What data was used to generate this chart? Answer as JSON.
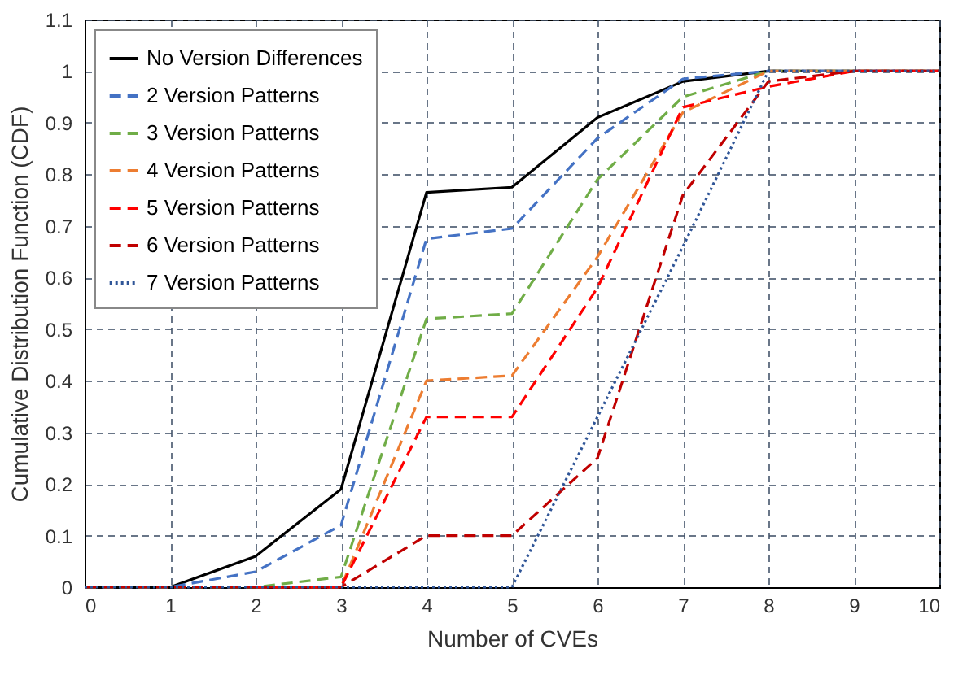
{
  "chart_data": {
    "type": "line",
    "xlabel": "Number of CVEs",
    "ylabel": "Cumulative Distribution Function (CDF)",
    "x": [
      0,
      1,
      2,
      3,
      4,
      5,
      6,
      7,
      8,
      9,
      10
    ],
    "series": [
      {
        "name": "No Version Differences",
        "color": "#000000",
        "line_style": "solid",
        "values": [
          0,
          0,
          0.06,
          0.19,
          0.765,
          0.775,
          0.91,
          0.98,
          1,
          1,
          1
        ]
      },
      {
        "name": "2 Version Patterns",
        "color": "#4472c4",
        "line_style": "dashed",
        "values": [
          0,
          0,
          0.03,
          0.12,
          0.675,
          0.695,
          0.87,
          0.985,
          1,
          1,
          1
        ]
      },
      {
        "name": "3 Version Patterns",
        "color": "#70ad47",
        "line_style": "dashed",
        "values": [
          0,
          0,
          0,
          0.02,
          0.52,
          0.53,
          0.79,
          0.95,
          1,
          1,
          1
        ]
      },
      {
        "name": "4 Version Patterns",
        "color": "#ed7d31",
        "line_style": "dashed",
        "values": [
          null,
          null,
          0,
          0,
          0.4,
          0.41,
          0.64,
          0.92,
          1,
          1,
          1
        ]
      },
      {
        "name": "5 Version Patterns",
        "color": "#ff0000",
        "line_style": "dashed",
        "values": [
          null,
          null,
          0,
          0,
          0.33,
          0.33,
          0.58,
          0.93,
          0.97,
          1,
          1
        ]
      },
      {
        "name": "6 Version Patterns",
        "color": "#c00000",
        "line_style": "dashed",
        "values": [
          0,
          0,
          0,
          0,
          0.1,
          0.1,
          0.25,
          0.76,
          0.98,
          1,
          1
        ]
      },
      {
        "name": "7 Version Patterns",
        "color": "#2f5597",
        "line_style": "dotted",
        "values": [
          0,
          0,
          0,
          0,
          0,
          0,
          0.33,
          0.66,
          1,
          1,
          1
        ]
      }
    ],
    "xlim": [
      0,
      10
    ],
    "xticks": [
      0,
      1,
      2,
      3,
      4,
      5,
      6,
      7,
      8,
      9,
      10
    ],
    "ylim": [
      0,
      1.1
    ],
    "yticks": [
      0,
      0.1,
      0.2,
      0.3,
      0.4,
      0.5,
      0.6,
      0.7,
      0.8,
      0.9,
      1,
      1.1
    ],
    "grid": true,
    "legend": "top left",
    "marker": "none"
  }
}
